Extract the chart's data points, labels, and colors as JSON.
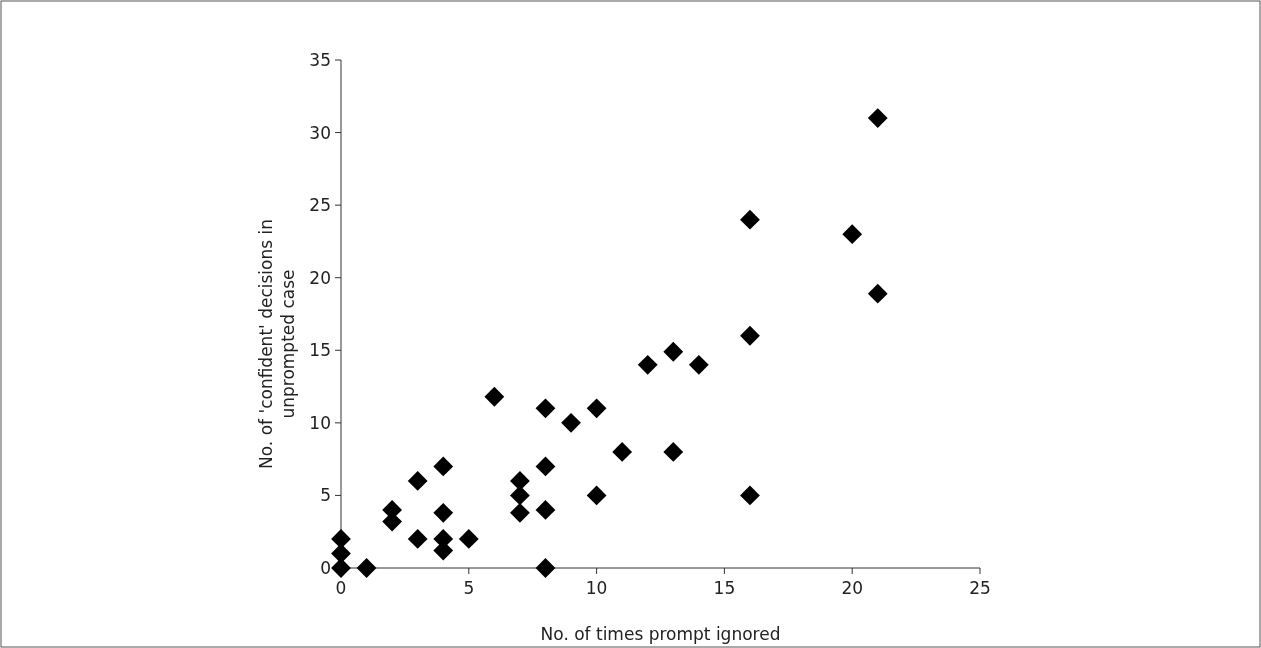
{
  "chart_data": {
    "type": "scatter",
    "xlabel": "No. of times prompt ignored",
    "ylabel": "No. of 'confident' decisions in unprompted case",
    "x": [
      0,
      0,
      0,
      1,
      2,
      2,
      3,
      3,
      4,
      4,
      4,
      4,
      5,
      6,
      7,
      7,
      7,
      8,
      8,
      8,
      8,
      9,
      10,
      10,
      11,
      12,
      13,
      13,
      14,
      16,
      16,
      16,
      20,
      21,
      21
    ],
    "values": [
      0,
      1,
      2,
      0,
      4,
      3.2,
      6,
      2,
      7,
      3.8,
      2,
      1.2,
      2,
      11.8,
      6,
      5,
      3.8,
      11,
      7,
      4,
      0,
      10,
      11,
      5,
      8,
      14,
      14.9,
      8,
      14,
      24,
      16,
      5,
      23,
      31,
      18.9
    ],
    "color": "#000000",
    "marker": "diamond",
    "xlim": [
      0,
      25
    ],
    "xticks": [
      0,
      5,
      10,
      15,
      20,
      25
    ],
    "ylim": [
      0,
      35
    ],
    "yticks": [
      0,
      5,
      10,
      15,
      20,
      25,
      30,
      35
    ],
    "grid": false
  }
}
